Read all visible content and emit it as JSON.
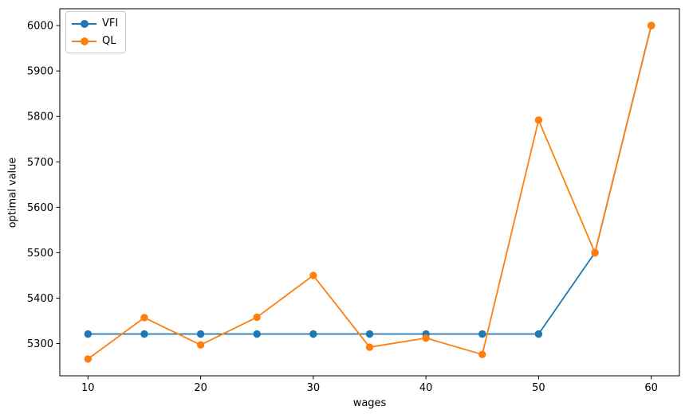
{
  "chart_data": {
    "type": "line",
    "title": "",
    "xlabel": "wages",
    "ylabel": "optimal value",
    "x": [
      10,
      15,
      20,
      25,
      30,
      35,
      40,
      45,
      50,
      55,
      60
    ],
    "series": [
      {
        "name": "VFI",
        "color": "#1f77b4",
        "values": [
          5321,
          5321,
          5321,
          5321,
          5321,
          5321,
          5321,
          5321,
          5321,
          5500,
          6000
        ]
      },
      {
        "name": "QL",
        "color": "#ff7f0e",
        "values": [
          5266,
          5357,
          5297,
          5358,
          5450,
          5292,
          5312,
          5276,
          5792,
          5500,
          6000
        ]
      }
    ],
    "xticks": [
      10,
      20,
      30,
      40,
      50,
      60
    ],
    "yticks": [
      5300,
      5400,
      5500,
      5600,
      5700,
      5800,
      5900,
      6000
    ],
    "xlim": [
      7.5,
      62.5
    ],
    "ylim": [
      5229,
      6037
    ],
    "grid": false,
    "marker": "o",
    "legend_position": "upper-left",
    "background_color": "#ffffff",
    "axis_color": "#000000"
  }
}
